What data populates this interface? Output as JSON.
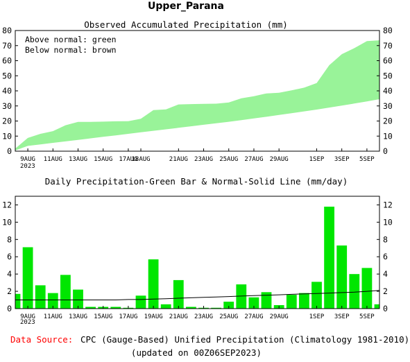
{
  "page_title": "Upper_Parana",
  "colors": {
    "accum_above": "#99f399",
    "accum_below": "#99f399",
    "bar": "#00e600",
    "line": "#000000",
    "source_label": "#ff0000"
  },
  "footer": {
    "source_label": "Data Source:",
    "source_text": "CPC (Gauge-Based) Unified Precipitation (Climatology 1981-2010)",
    "updated": "(updated on 00Z06SEP2023)"
  },
  "chart_data": [
    {
      "type": "area",
      "title": "Observed Accumulated Precipitation (mm)",
      "legend_lines": [
        "Above normal: green",
        "Below normal: brown"
      ],
      "ylim": [
        0,
        80
      ],
      "yticks": [
        0,
        10,
        20,
        30,
        40,
        50,
        60,
        70,
        80
      ],
      "xlim": [
        8,
        37
      ],
      "xticks": [
        {
          "x": 9,
          "label": "9AUG"
        },
        {
          "x": 11,
          "label": "11AUG"
        },
        {
          "x": 13,
          "label": "13AUG"
        },
        {
          "x": 15,
          "label": "15AUG"
        },
        {
          "x": 17,
          "label": "17AUG"
        },
        {
          "x": 18,
          "label": "18AUG"
        },
        {
          "x": 21,
          "label": "21AUG"
        },
        {
          "x": 23,
          "label": "23AUG"
        },
        {
          "x": 25,
          "label": "25AUG"
        },
        {
          "x": 27,
          "label": "27AUG"
        },
        {
          "x": 29,
          "label": "29AUG"
        },
        {
          "x": 32,
          "label": "1SEP"
        },
        {
          "x": 34,
          "label": "3SEP"
        },
        {
          "x": 36,
          "label": "5SEP"
        }
      ],
      "year_label": "2023",
      "series": [
        {
          "name": "Observed",
          "x": [
            8,
            9,
            10,
            11,
            12,
            13,
            14,
            15,
            16,
            17,
            18,
            19,
            20,
            21,
            22,
            23,
            24,
            25,
            26,
            27,
            28,
            29,
            30,
            31,
            32,
            33,
            34,
            35,
            36,
            37
          ],
          "values": [
            1.7,
            8.8,
            11.5,
            13.3,
            17.2,
            19.4,
            19.4,
            19.6,
            19.8,
            19.9,
            21.5,
            27.2,
            27.7,
            31.0,
            31.2,
            31.4,
            31.5,
            32.3,
            35.1,
            36.4,
            38.3,
            38.7,
            40.3,
            42.1,
            45.2,
            57.0,
            64.3,
            68.3,
            73.0,
            73.5
          ]
        },
        {
          "name": "Normal",
          "x": [
            8,
            9,
            10,
            11,
            12,
            13,
            14,
            15,
            16,
            17,
            18,
            19,
            20,
            21,
            22,
            23,
            24,
            25,
            26,
            27,
            28,
            29,
            30,
            31,
            32,
            33,
            34,
            35,
            36,
            37
          ],
          "values": [
            0.5,
            3.5,
            4.5,
            5.5,
            6.5,
            7.5,
            8.5,
            9.5,
            10.5,
            11.5,
            12.5,
            13.5,
            14.5,
            15.5,
            16.5,
            17.5,
            18.5,
            19.5,
            20.6,
            21.7,
            22.8,
            24.0,
            25.2,
            26.4,
            27.6,
            28.9,
            30.2,
            31.6,
            33.0,
            34.5
          ]
        }
      ]
    },
    {
      "type": "bar",
      "title": "Daily Precipitation-Green Bar & Normal-Solid Line (mm/day)",
      "ylim": [
        0,
        13
      ],
      "yticks": [
        0,
        2,
        4,
        6,
        8,
        10,
        12
      ],
      "xlim": [
        8,
        37
      ],
      "xticks": [
        {
          "x": 9,
          "label": "9AUG"
        },
        {
          "x": 11,
          "label": "11AUG"
        },
        {
          "x": 13,
          "label": "13AUG"
        },
        {
          "x": 15,
          "label": "15AUG"
        },
        {
          "x": 17,
          "label": "17AUG"
        },
        {
          "x": 19,
          "label": "19AUG"
        },
        {
          "x": 21,
          "label": "21AUG"
        },
        {
          "x": 23,
          "label": "23AUG"
        },
        {
          "x": 25,
          "label": "25AUG"
        },
        {
          "x": 27,
          "label": "27AUG"
        },
        {
          "x": 29,
          "label": "29AUG"
        },
        {
          "x": 32,
          "label": "1SEP"
        },
        {
          "x": 34,
          "label": "3SEP"
        },
        {
          "x": 36,
          "label": "5SEP"
        }
      ],
      "year_label": "2023",
      "series": [
        {
          "name": "Daily precipitation",
          "x": [
            8,
            9,
            10,
            11,
            12,
            13,
            14,
            15,
            16,
            17,
            18,
            19,
            20,
            21,
            22,
            23,
            24,
            25,
            26,
            27,
            28,
            29,
            30,
            31,
            32,
            33,
            34,
            35,
            36,
            37
          ],
          "values": [
            1.7,
            7.1,
            2.7,
            1.8,
            3.9,
            2.2,
            0.2,
            0.2,
            0.2,
            0.1,
            1.5,
            5.7,
            0.5,
            3.3,
            0.2,
            0.1,
            0.1,
            0.8,
            2.8,
            1.3,
            1.9,
            0.4,
            1.6,
            1.8,
            3.1,
            11.8,
            7.3,
            4.0,
            4.7,
            0.5
          ]
        },
        {
          "name": "Normal",
          "x": [
            8,
            9,
            10,
            11,
            12,
            13,
            14,
            15,
            16,
            17,
            18,
            19,
            20,
            21,
            22,
            23,
            24,
            25,
            26,
            27,
            28,
            29,
            30,
            31,
            32,
            33,
            34,
            35,
            36,
            37
          ],
          "values": [
            1.0,
            1.0,
            1.0,
            1.0,
            1.0,
            1.0,
            1.0,
            1.0,
            1.0,
            1.05,
            1.05,
            1.1,
            1.15,
            1.2,
            1.25,
            1.3,
            1.35,
            1.4,
            1.45,
            1.5,
            1.55,
            1.6,
            1.65,
            1.7,
            1.75,
            1.8,
            1.85,
            1.9,
            2.0,
            2.1
          ]
        }
      ]
    }
  ]
}
